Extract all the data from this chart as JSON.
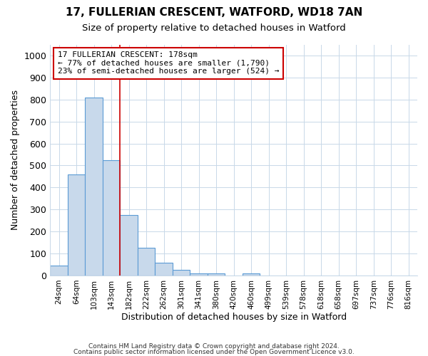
{
  "title1": "17, FULLERIAN CRESCENT, WATFORD, WD18 7AN",
  "title2": "Size of property relative to detached houses in Watford",
  "xlabel": "Distribution of detached houses by size in Watford",
  "ylabel": "Number of detached properties",
  "bar_labels": [
    "24sqm",
    "64sqm",
    "103sqm",
    "143sqm",
    "182sqm",
    "222sqm",
    "262sqm",
    "301sqm",
    "341sqm",
    "380sqm",
    "420sqm",
    "460sqm",
    "499sqm",
    "539sqm",
    "578sqm",
    "618sqm",
    "658sqm",
    "697sqm",
    "737sqm",
    "776sqm",
    "816sqm"
  ],
  "bar_values": [
    46,
    460,
    810,
    525,
    275,
    125,
    57,
    26,
    11,
    11,
    0,
    8,
    0,
    0,
    0,
    0,
    0,
    0,
    0,
    0,
    0
  ],
  "bar_color": "#c8d9eb",
  "bar_edge_color": "#5b9bd5",
  "annotation_text": "17 FULLERIAN CRESCENT: 178sqm\n← 77% of detached houses are smaller (1,790)\n23% of semi-detached houses are larger (524) →",
  "annotation_box_color": "#ffffff",
  "annotation_box_edge": "#cc0000",
  "vline_color": "#cc0000",
  "ylim": [
    0,
    1050
  ],
  "yticks": [
    0,
    100,
    200,
    300,
    400,
    500,
    600,
    700,
    800,
    900,
    1000
  ],
  "footer1": "Contains HM Land Registry data © Crown copyright and database right 2024.",
  "footer2": "Contains public sector information licensed under the Open Government Licence v3.0.",
  "bg_color": "#ffffff",
  "plot_bg_color": "#ffffff",
  "grid_color": "#c8d8e8"
}
